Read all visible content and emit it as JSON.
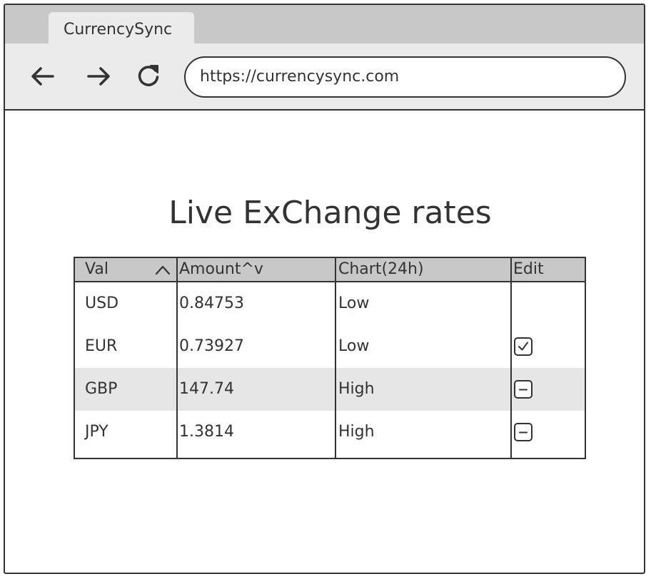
{
  "browser": {
    "tab_title": "CurrencySync",
    "url": "https://currencysync.com",
    "icons": {
      "back": "arrow-left-icon",
      "forward": "arrow-right-icon",
      "reload": "reload-icon"
    }
  },
  "page": {
    "title": "Live ExChange rates"
  },
  "table": {
    "columns": [
      {
        "label": "Val",
        "sort_icon": "chevron-up-icon"
      },
      {
        "label": "Amount^v"
      },
      {
        "label": "Chart(24h)"
      },
      {
        "label": "Edit"
      }
    ],
    "rows": [
      {
        "val": "USD",
        "amount": "0.84753",
        "chart": "Low",
        "edit": "none"
      },
      {
        "val": "EUR",
        "amount": "0.73927",
        "chart": "Low",
        "edit": "checked"
      },
      {
        "val": "GBP",
        "amount": "147.74",
        "chart": "High",
        "edit": "indeterminate"
      },
      {
        "val": "JPY",
        "amount": "1.3814",
        "chart": "High",
        "edit": "indeterminate"
      }
    ]
  },
  "colors": {
    "ink": "#333333",
    "tabstrip": "#c8c8c8",
    "toolbar": "#ebebeb",
    "header_bg": "#c8c8c8",
    "alt_row_bg": "#e6e6e6"
  }
}
